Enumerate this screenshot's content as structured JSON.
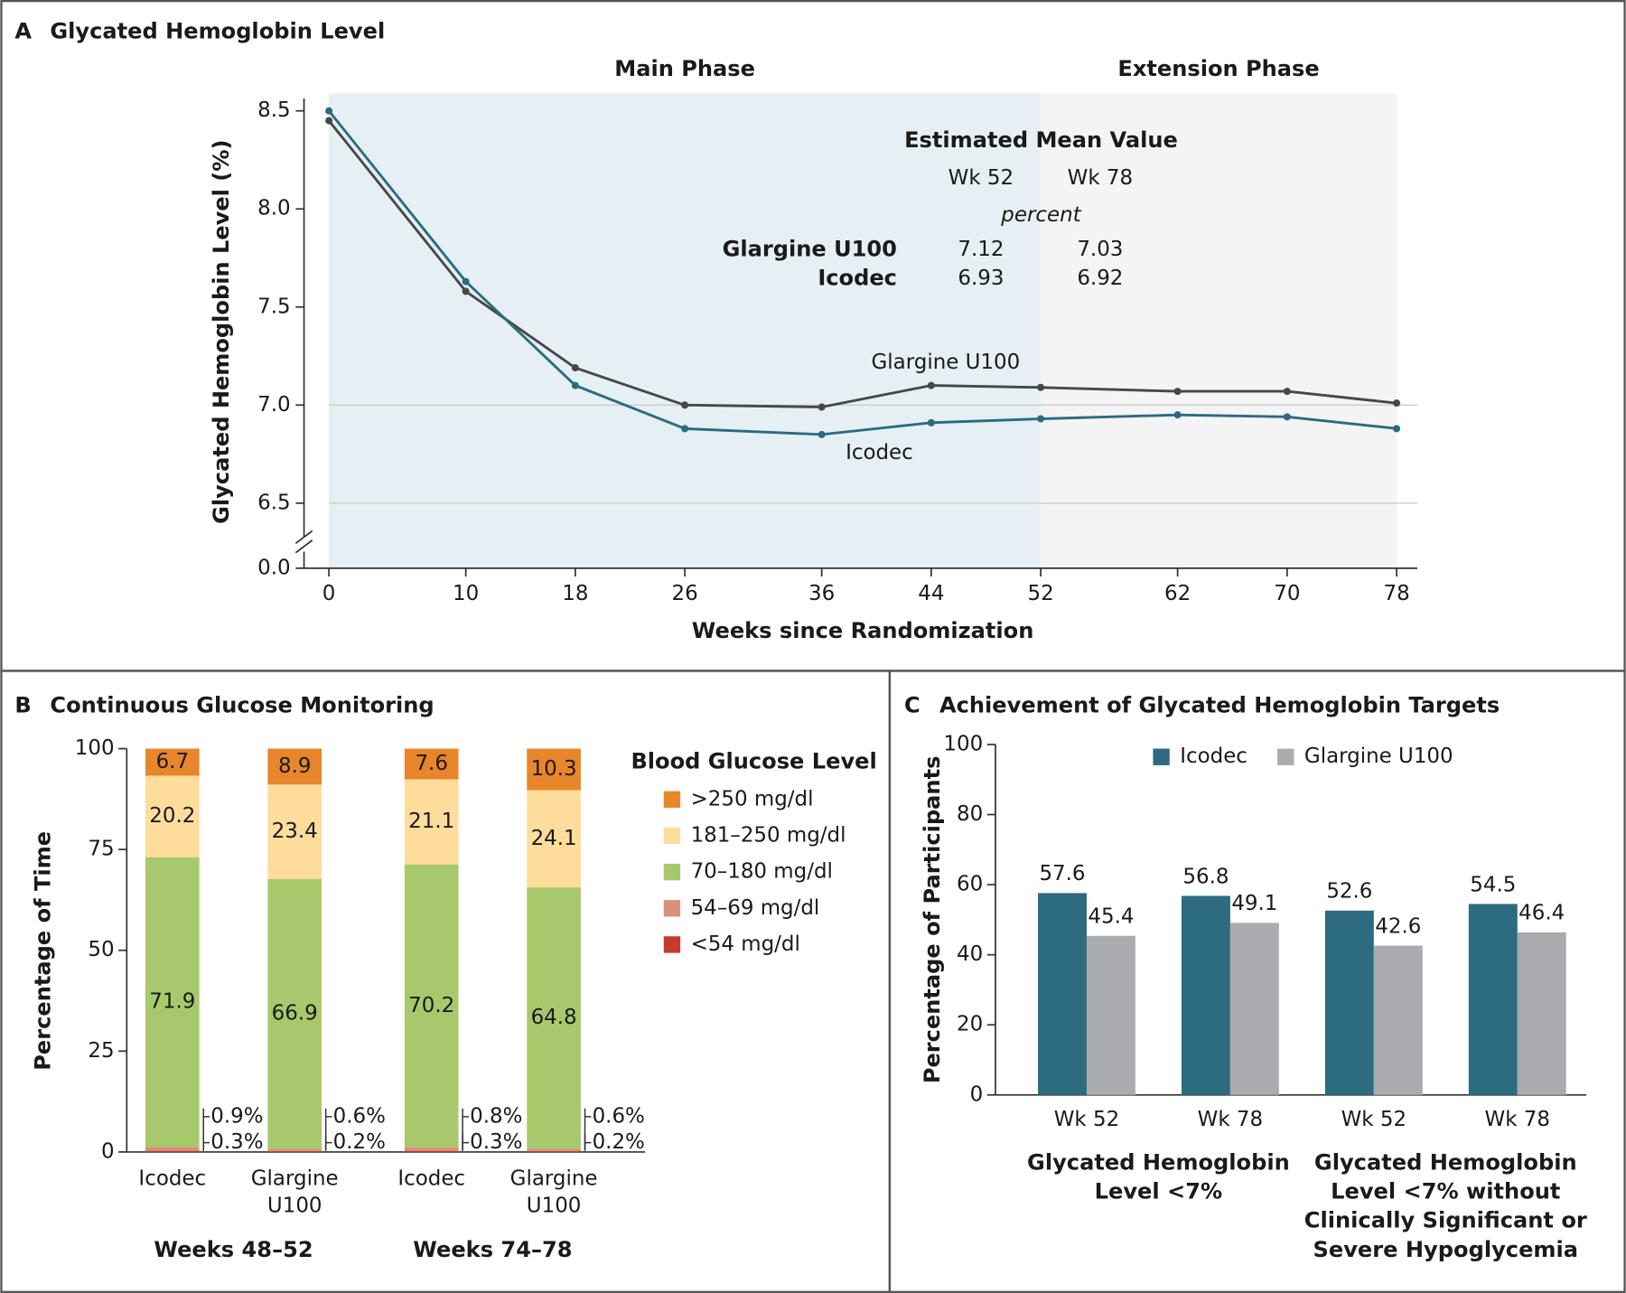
{
  "chart_data": [
    {
      "type": "line",
      "panel": "A",
      "title": "Glycated Hemoglobin Level",
      "x_label": "Weeks since Randomization",
      "y_label": "Glycated Hemoglobin Level (%)",
      "x": [
        0,
        10,
        18,
        26,
        36,
        44,
        52,
        62,
        70,
        78
      ],
      "series": [
        {
          "name": "Glargine U100",
          "color": "#474747",
          "values": [
            8.45,
            7.58,
            7.19,
            7.0,
            6.99,
            7.1,
            7.09,
            7.07,
            7.07,
            7.01
          ]
        },
        {
          "name": "Icodec",
          "color": "#2b6b80",
          "values": [
            8.5,
            7.63,
            7.1,
            6.88,
            6.85,
            6.91,
            6.93,
            6.95,
            6.94,
            6.88
          ]
        }
      ],
      "xlim": [
        0,
        78
      ],
      "xticks": [
        0,
        10,
        18,
        26,
        36,
        44,
        52,
        62,
        70,
        78
      ],
      "ylim": [
        0,
        8.6
      ],
      "y_break": [
        0,
        6.2
      ],
      "yticks": [
        {
          "value": 0,
          "label": "0.0"
        },
        6.5,
        {
          "value": 7,
          "label": "7.0"
        },
        7.5,
        {
          "value": 8,
          "label": "8.0"
        },
        8.5
      ],
      "grid_lines": [
        6.5,
        7
      ],
      "phases": [
        {
          "label": "Main Phase",
          "range": [
            0,
            52
          ],
          "color": "#e5eff4"
        },
        {
          "label": "Extension Phase",
          "range": [
            52,
            78
          ],
          "color": "#f4f4f4"
        }
      ],
      "inset": {
        "title": "Estimated Mean Value",
        "columns": [
          "Wk 52",
          "Wk 78"
        ],
        "unit": "percent",
        "rows": [
          {
            "label": "Glargine U100",
            "values": [
              7.12,
              7.03
            ]
          },
          {
            "label": "Icodec",
            "values": [
              6.93,
              6.92
            ]
          }
        ]
      }
    },
    {
      "type": "bar",
      "stacked": true,
      "panel": "B",
      "title": "Continuous Glucose Monitoring",
      "y_label": "Percentage of Time",
      "categories": [
        "Icodec",
        "Glargine U100",
        "Icodec",
        "Glargine U100"
      ],
      "category_groups": [
        "Weeks 48–52",
        "Weeks 74–78"
      ],
      "legend_title": "Blood Glucose Level",
      "series": [
        {
          "name": "<54 mg/dl",
          "color": "#c63a2b",
          "values": [
            0.3,
            0.2,
            0.3,
            0.2
          ],
          "value_labels": [
            "0.3%",
            "0.2%",
            "0.3%",
            "0.2%"
          ]
        },
        {
          "name": "54–69 mg/dl",
          "color": "#d9907d",
          "values": [
            0.9,
            0.6,
            0.8,
            0.6
          ],
          "value_labels": [
            "0.9%",
            "0.6%",
            "0.8%",
            "0.6%"
          ]
        },
        {
          "name": "70–180 mg/dl",
          "color": "#a7c96b",
          "values": [
            71.9,
            66.9,
            70.2,
            64.8
          ]
        },
        {
          "name": "181–250 mg/dl",
          "color": "#fddc9c",
          "values": [
            20.2,
            23.4,
            21.1,
            24.1
          ]
        },
        {
          "name": ">250 mg/dl",
          "color": "#e8862b",
          "values": [
            6.7,
            8.9,
            7.6,
            10.3
          ]
        }
      ],
      "ylim": [
        0,
        100
      ],
      "yticks": [
        0,
        25,
        50,
        75,
        100
      ]
    },
    {
      "type": "bar",
      "panel": "C",
      "title": "Achievement of Glycated Hemoglobin Targets",
      "y_label": "Percentage of Participants",
      "categories": [
        "Wk 52",
        "Wk 78",
        "Wk 52",
        "Wk 78"
      ],
      "category_groups": [
        "Glycated Hemoglobin Level <7%",
        "Glycated Hemoglobin Level <7% without Clinically Significant or Severe Hypoglycemia"
      ],
      "series": [
        {
          "name": "Icodec",
          "color": "#2d6b80",
          "values": [
            57.6,
            56.8,
            52.6,
            54.5
          ]
        },
        {
          "name": "Glargine U100",
          "color": "#a9abaf",
          "values": [
            45.4,
            49.1,
            42.6,
            46.4
          ]
        }
      ],
      "ylim": [
        0,
        100
      ],
      "yticks": [
        0,
        20,
        40,
        60,
        80,
        100
      ]
    }
  ]
}
